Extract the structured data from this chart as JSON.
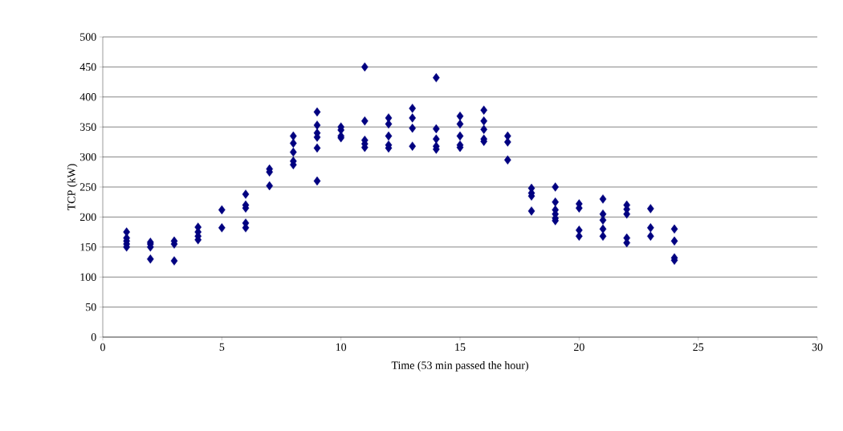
{
  "chart_data": {
    "type": "scatter",
    "xlabel": "Time (53 min passed the hour)",
    "ylabel": "TCP (kW)",
    "x": [
      1,
      1,
      1,
      1,
      1,
      2,
      2,
      2,
      2,
      3,
      3,
      3,
      4,
      4,
      4,
      4,
      5,
      5,
      6,
      6,
      6,
      6,
      6,
      7,
      7,
      7,
      8,
      8,
      8,
      8,
      8,
      9,
      9,
      9,
      9,
      9,
      9,
      10,
      10,
      10,
      10,
      11,
      11,
      11,
      11,
      11,
      12,
      12,
      12,
      12,
      12,
      13,
      13,
      13,
      13,
      14,
      14,
      14,
      14,
      14,
      15,
      15,
      15,
      15,
      15,
      16,
      16,
      16,
      16,
      16,
      17,
      17,
      17,
      18,
      18,
      18,
      18,
      19,
      19,
      19,
      19,
      19,
      19,
      20,
      20,
      20,
      20,
      21,
      21,
      21,
      21,
      21,
      22,
      22,
      22,
      22,
      22,
      23,
      23,
      23,
      24,
      24,
      24,
      24
    ],
    "values": [
      175,
      165,
      160,
      155,
      150,
      158,
      155,
      150,
      130,
      160,
      155,
      127,
      183,
      175,
      168,
      162,
      212,
      182,
      238,
      220,
      215,
      190,
      182,
      280,
      275,
      252,
      335,
      323,
      308,
      293,
      287,
      375,
      353,
      340,
      333,
      315,
      260,
      350,
      345,
      335,
      332,
      450,
      360,
      328,
      322,
      316,
      365,
      355,
      335,
      320,
      315,
      381,
      365,
      348,
      318,
      432,
      347,
      330,
      318,
      313,
      368,
      355,
      335,
      320,
      316,
      378,
      360,
      346,
      330,
      326,
      335,
      325,
      295,
      248,
      240,
      235,
      210,
      250,
      225,
      212,
      205,
      198,
      194,
      222,
      215,
      178,
      168,
      230,
      205,
      195,
      180,
      168,
      220,
      213,
      205,
      165,
      157,
      214,
      182,
      168,
      180,
      160,
      132,
      128
    ],
    "color": "#000080",
    "marker": "diamond",
    "grid": "y",
    "xlim": [
      0,
      30
    ],
    "xticks": [
      0,
      5,
      10,
      15,
      20,
      25,
      30
    ],
    "ylim": [
      0,
      500
    ],
    "yticks": [
      0,
      50,
      100,
      150,
      200,
      250,
      300,
      350,
      400,
      450,
      500
    ]
  }
}
